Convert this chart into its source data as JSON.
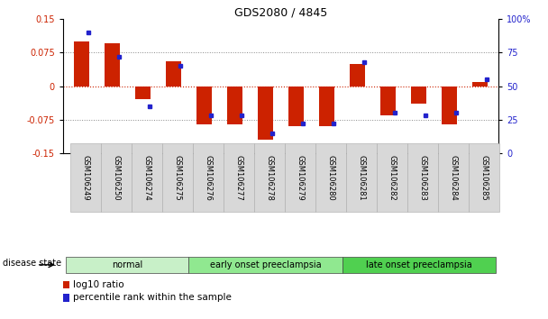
{
  "title": "GDS2080 / 4845",
  "samples": [
    "GSM106249",
    "GSM106250",
    "GSM106274",
    "GSM106275",
    "GSM106276",
    "GSM106277",
    "GSM106278",
    "GSM106279",
    "GSM106280",
    "GSM106281",
    "GSM106282",
    "GSM106283",
    "GSM106284",
    "GSM106285"
  ],
  "log10_ratio": [
    0.1,
    0.095,
    -0.03,
    0.055,
    -0.085,
    -0.085,
    -0.12,
    -0.09,
    -0.09,
    0.05,
    -0.065,
    -0.04,
    -0.085,
    0.01
  ],
  "percentile_rank": [
    90,
    72,
    35,
    65,
    28,
    28,
    15,
    22,
    22,
    68,
    30,
    28,
    30,
    55
  ],
  "groups": [
    {
      "label": "normal",
      "start": 0,
      "end": 3,
      "color": "#c8f0c8"
    },
    {
      "label": "early onset preeclampsia",
      "start": 4,
      "end": 8,
      "color": "#90e890"
    },
    {
      "label": "late onset preeclampsia",
      "start": 9,
      "end": 13,
      "color": "#50d050"
    }
  ],
  "disease_state_label": "disease state",
  "legend": [
    "log10 ratio",
    "percentile rank within the sample"
  ],
  "bar_color_red": "#cc2200",
  "bar_color_blue": "#2222cc",
  "ylim_left": [
    -0.15,
    0.15
  ],
  "ylim_right": [
    0,
    100
  ],
  "yticks_left": [
    -0.15,
    -0.075,
    0,
    0.075,
    0.15
  ],
  "yticks_right": [
    0,
    25,
    50,
    75,
    100
  ],
  "ytick_labels_right": [
    "0",
    "25",
    "50",
    "75",
    "100%"
  ]
}
